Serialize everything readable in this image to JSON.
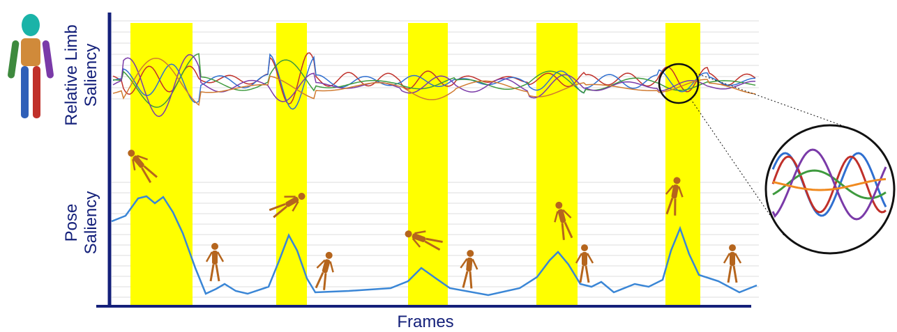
{
  "axes": {
    "top_label": [
      "Relative Limb",
      "Saliency"
    ],
    "bottom_label": [
      "Pose",
      "Saliency"
    ],
    "x_label": "Frames"
  }
}
